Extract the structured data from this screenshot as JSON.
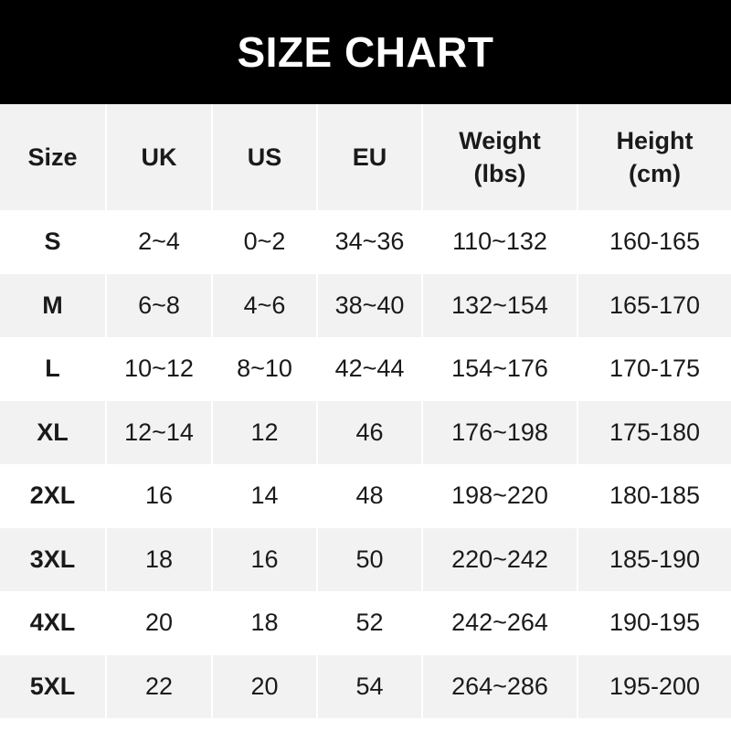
{
  "chart_data": {
    "type": "table",
    "title": "SIZE CHART",
    "columns": [
      {
        "line1": "Size",
        "line2": ""
      },
      {
        "line1": "UK",
        "line2": ""
      },
      {
        "line1": "US",
        "line2": ""
      },
      {
        "line1": "EU",
        "line2": ""
      },
      {
        "line1": "Weight",
        "line2": "(lbs)"
      },
      {
        "line1": "Height",
        "line2": "(cm)"
      }
    ],
    "rows": [
      [
        "S",
        "2~4",
        "0~2",
        "34~36",
        "110~132",
        "160-165"
      ],
      [
        "M",
        "6~8",
        "4~6",
        "38~40",
        "132~154",
        "165-170"
      ],
      [
        "L",
        "10~12",
        "8~10",
        "42~44",
        "154~176",
        "170-175"
      ],
      [
        "XL",
        "12~14",
        "12",
        "46",
        "176~198",
        "175-180"
      ],
      [
        "2XL",
        "16",
        "14",
        "48",
        "198~220",
        "180-185"
      ],
      [
        "3XL",
        "18",
        "16",
        "50",
        "220~242",
        "185-190"
      ],
      [
        "4XL",
        "20",
        "18",
        "52",
        "242~264",
        "190-195"
      ],
      [
        "5XL",
        "22",
        "20",
        "54",
        "264~286",
        "195-200"
      ]
    ],
    "colors": {
      "title_bg": "#000000",
      "header_bg": "#f2f2f2",
      "alt_row_bg": "#f2f2f2"
    }
  }
}
